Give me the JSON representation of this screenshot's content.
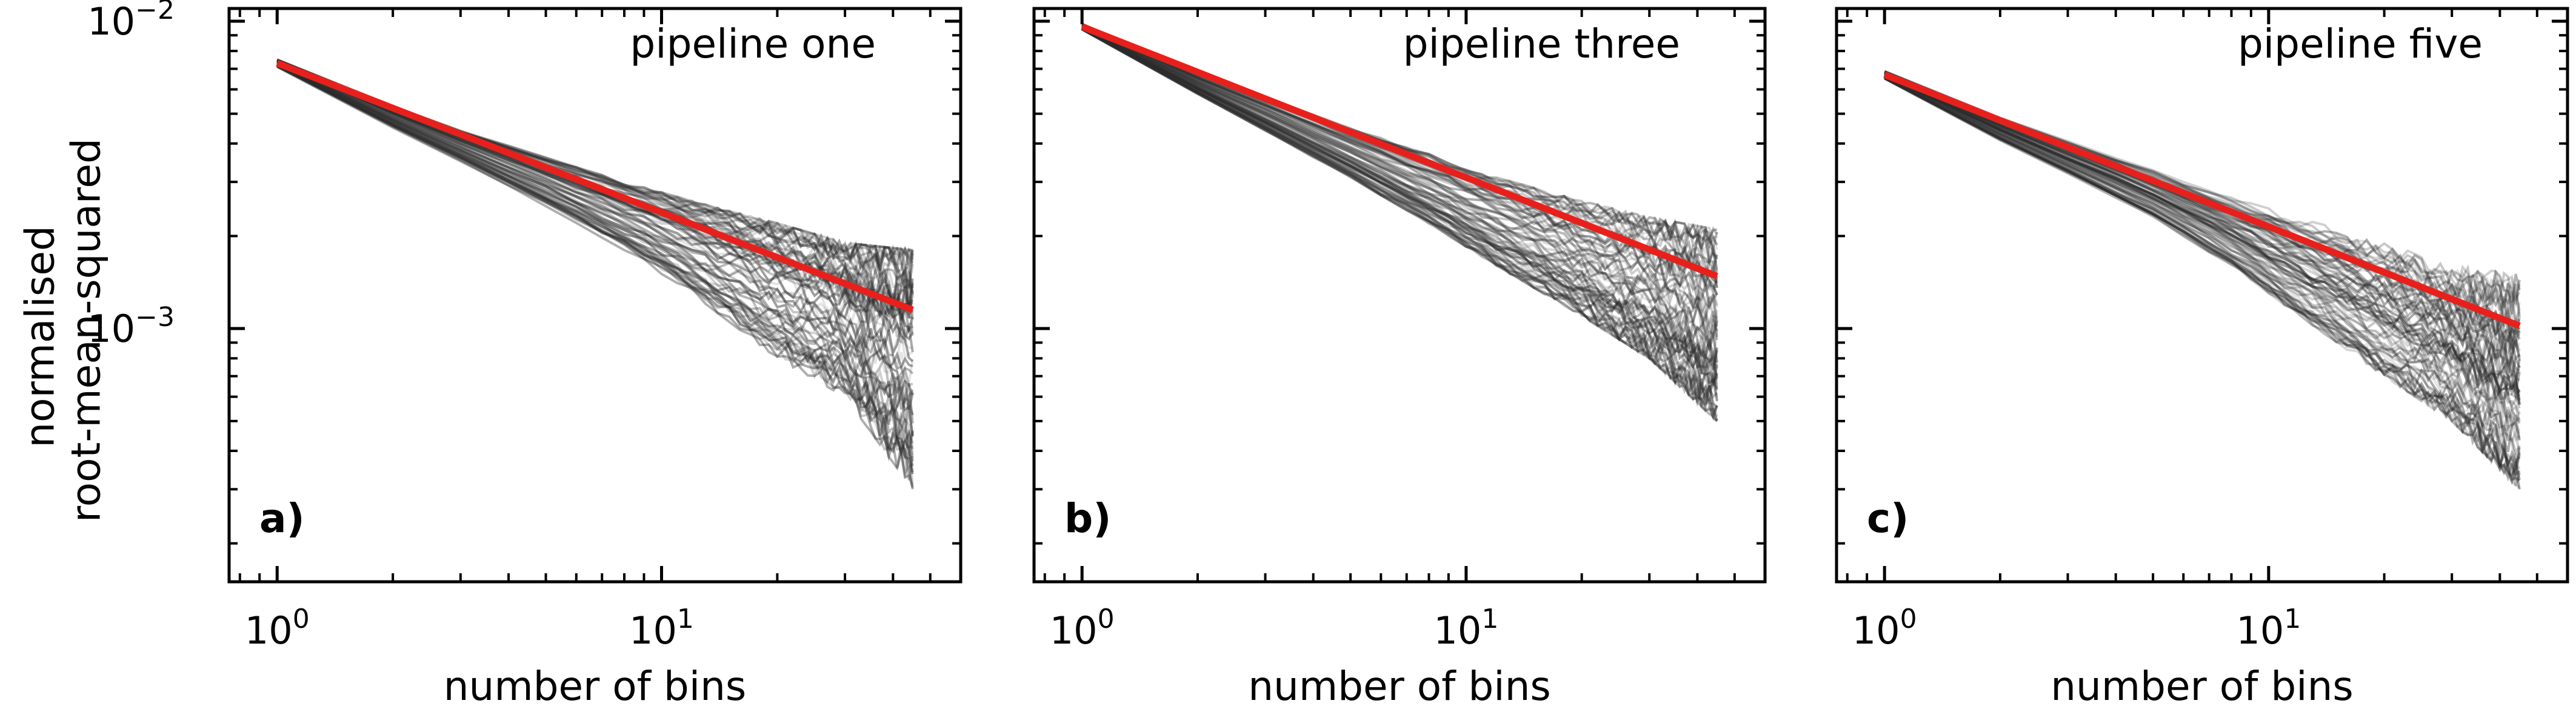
{
  "figure": {
    "ylabel_lines": [
      "normalised",
      "root-mean-squared"
    ],
    "xlabel": "number of bins"
  },
  "chart_data": [
    {
      "type": "line",
      "title": "pipeline one",
      "panel_label": "a)",
      "xlabel": "number of bins",
      "ylabel": "normalised root-mean-squared",
      "xscale": "log",
      "yscale": "log",
      "xlim": [
        0.75,
        60
      ],
      "ylim": [
        0.00015,
        0.011
      ],
      "xticks": [
        {
          "value": 1,
          "base": "10",
          "exp": "0"
        },
        {
          "value": 10,
          "base": "10",
          "exp": "1"
        }
      ],
      "yticks": [
        {
          "value": 0.001,
          "base": "10",
          "exp": "−3"
        },
        {
          "value": 0.01,
          "base": "10",
          "exp": "−2"
        }
      ],
      "fit_line": {
        "color": "#e8201c",
        "x": [
          1,
          45
        ],
        "y": [
          0.0073,
          0.00115
        ]
      },
      "trial_band": {
        "n_traces": 70,
        "color": "#2b2b2b",
        "x": [
          1,
          2,
          3,
          5,
          8,
          12,
          20,
          30,
          45
        ],
        "y_low": [
          0.0071,
          0.0045,
          0.0035,
          0.0025,
          0.0018,
          0.0013,
          0.0008,
          0.0006,
          0.0003
        ],
        "y_high": [
          0.0075,
          0.0053,
          0.0044,
          0.0036,
          0.003,
          0.0026,
          0.0022,
          0.0019,
          0.0018
        ]
      },
      "grid": false
    },
    {
      "type": "line",
      "title": "pipeline three",
      "panel_label": "b)",
      "xlabel": "number of bins",
      "ylabel": "",
      "xscale": "log",
      "yscale": "log",
      "xlim": [
        0.75,
        60
      ],
      "ylim": [
        0.00015,
        0.011
      ],
      "xticks": [
        {
          "value": 1,
          "base": "10",
          "exp": "0"
        },
        {
          "value": 10,
          "base": "10",
          "exp": "1"
        }
      ],
      "yticks": [
        {
          "value": 0.001,
          "base": "",
          "exp": ""
        },
        {
          "value": 0.01,
          "base": "",
          "exp": ""
        }
      ],
      "fit_line": {
        "color": "#e8201c",
        "x": [
          1,
          45
        ],
        "y": [
          0.0096,
          0.00148
        ]
      },
      "trial_band": {
        "n_traces": 70,
        "color": "#2b2b2b",
        "x": [
          1,
          2,
          3,
          5,
          8,
          12,
          20,
          30,
          45
        ],
        "y_low": [
          0.0094,
          0.0058,
          0.0044,
          0.0031,
          0.0022,
          0.0016,
          0.0011,
          0.0008,
          0.0005
        ],
        "y_high": [
          0.0098,
          0.0068,
          0.0057,
          0.0045,
          0.0037,
          0.0031,
          0.0026,
          0.0023,
          0.0021
        ]
      },
      "grid": false
    },
    {
      "type": "line",
      "title": "pipeline five",
      "panel_label": "c)",
      "xlabel": "number of bins",
      "ylabel": "",
      "xscale": "log",
      "yscale": "log",
      "xlim": [
        0.75,
        60
      ],
      "ylim": [
        0.00015,
        0.011
      ],
      "xticks": [
        {
          "value": 1,
          "base": "10",
          "exp": "0"
        },
        {
          "value": 10,
          "base": "10",
          "exp": "1"
        }
      ],
      "yticks": [
        {
          "value": 0.001,
          "base": "",
          "exp": ""
        },
        {
          "value": 0.01,
          "base": "",
          "exp": ""
        }
      ],
      "fit_line": {
        "color": "#e8201c",
        "x": [
          1,
          45
        ],
        "y": [
          0.0067,
          0.00102
        ]
      },
      "trial_band": {
        "n_traces": 70,
        "color": "#2b2b2b",
        "x": [
          1,
          2,
          3,
          5,
          8,
          12,
          20,
          30,
          45
        ],
        "y_low": [
          0.0065,
          0.0041,
          0.0032,
          0.0023,
          0.0016,
          0.0011,
          0.0007,
          0.0005,
          0.0003
        ],
        "y_high": [
          0.0069,
          0.0049,
          0.0041,
          0.0033,
          0.0027,
          0.0023,
          0.0019,
          0.0016,
          0.0015
        ]
      },
      "grid": false
    }
  ]
}
